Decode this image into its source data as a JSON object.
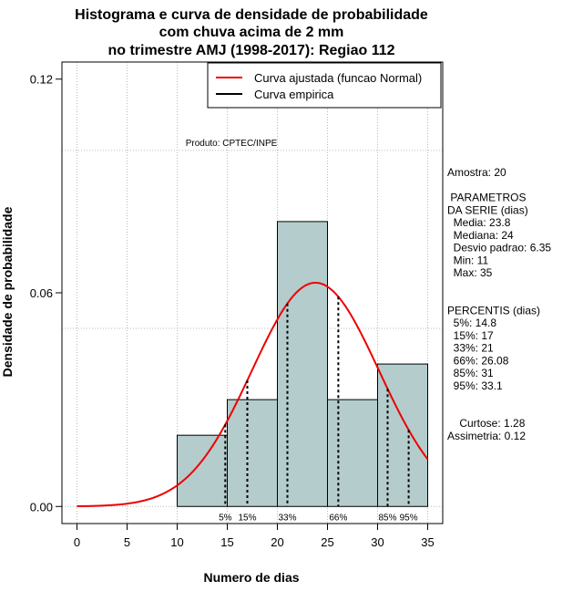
{
  "chart_data": {
    "type": "histogram",
    "title_lines": [
      "Histograma e curva de densidade de probabilidade",
      "com chuva acima de 2 mm",
      "no trimestre AMJ (1998-2017): Regiao 112"
    ],
    "xlabel": "Numero de dias",
    "ylabel": "Densidade de probabilidade",
    "xlim": [
      -1.5,
      36.5
    ],
    "ylim": [
      -0.0048,
      0.1248
    ],
    "x_ticks": [
      0,
      5,
      10,
      15,
      20,
      25,
      30,
      35
    ],
    "y_ticks": [
      0.0,
      0.06,
      0.12
    ],
    "y_tick_labels": [
      "0.00",
      "0.06",
      "0.12"
    ],
    "grid_x": [
      0,
      5,
      10,
      15,
      20,
      25,
      30,
      35
    ],
    "grid_y": [
      0.0,
      0.05,
      0.1
    ],
    "bins": [
      {
        "x0": 10,
        "x1": 15,
        "density": 0.02
      },
      {
        "x0": 15,
        "x1": 20,
        "density": 0.03
      },
      {
        "x0": 20,
        "x1": 25,
        "density": 0.08
      },
      {
        "x0": 25,
        "x1": 30,
        "density": 0.03
      },
      {
        "x0": 30,
        "x1": 35,
        "density": 0.04
      }
    ],
    "normal_fit": {
      "mean": 23.8,
      "sd": 6.35,
      "x_range": [
        0,
        35
      ]
    },
    "percentile_lines": [
      {
        "label": "5%",
        "x": 14.8
      },
      {
        "label": "15%",
        "x": 17
      },
      {
        "label": "33%",
        "x": 21
      },
      {
        "label": "66%",
        "x": 26.08
      },
      {
        "label": "85%",
        "x": 31
      },
      {
        "label": "95%",
        "x": 33.1
      }
    ],
    "legend": [
      {
        "label": "Curva ajustada (funcao Normal)",
        "color": "#ee0000"
      },
      {
        "label": "Curva empirica",
        "color": "#000000"
      }
    ],
    "legend_position": "top-right",
    "product_note": "Produto: CPTEC/INPE",
    "colors": {
      "bar_fill": "#b4cccc",
      "curve": "#ee0000",
      "grid": "#bbbbbb"
    }
  },
  "side_panel": [
    "Amostra: 20",
    "",
    " PARAMETROS",
    "DA SERIE (dias)",
    "  Media: 23.8",
    "  Mediana: 24",
    "  Desvio padrao: 6.35",
    "  Min: 11",
    "  Max: 35",
    "",
    "",
    "PERCENTIS (dias)",
    "  5%: 14.8",
    "  15%: 17",
    "  33%: 21",
    "  66%: 26.08",
    "  85%: 31",
    "  95%: 33.1",
    "",
    "",
    "    Curtose: 1.28",
    "Assimetria: 0.12"
  ]
}
